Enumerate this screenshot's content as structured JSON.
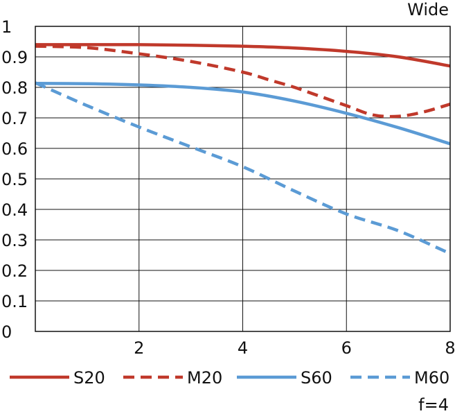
{
  "chart_data": {
    "type": "line",
    "title": "Wide",
    "footnote": "f=4",
    "xlim": [
      0,
      8
    ],
    "ylim": [
      0,
      1
    ],
    "x_ticks": [
      2,
      4,
      6,
      8
    ],
    "y_ticks": [
      0,
      0.1,
      0.2,
      0.3,
      0.4,
      0.5,
      0.6,
      0.7,
      0.8,
      0.9,
      1
    ],
    "y_tick_labels": [
      "0",
      "0.1",
      "0.2",
      "0.3",
      "0.4",
      "0.5",
      "0.6",
      "0.7",
      "0.8",
      "0.9",
      "1"
    ],
    "grid": true,
    "legend_position": "bottom",
    "series": [
      {
        "name": "S20",
        "color": "#c0392b",
        "dash": false,
        "x": [
          0,
          1,
          2,
          3,
          4,
          5,
          6,
          7,
          8
        ],
        "y": [
          0.94,
          0.94,
          0.94,
          0.938,
          0.935,
          0.929,
          0.918,
          0.9,
          0.87
        ]
      },
      {
        "name": "M20",
        "color": "#c0392b",
        "dash": true,
        "x": [
          0,
          1,
          2,
          3,
          4,
          4.5,
          5,
          5.5,
          6,
          6.5,
          7,
          7.5,
          8
        ],
        "y": [
          0.935,
          0.93,
          0.91,
          0.885,
          0.85,
          0.825,
          0.8,
          0.77,
          0.74,
          0.71,
          0.705,
          0.72,
          0.745
        ]
      },
      {
        "name": "S60",
        "color": "#5b9bd5",
        "dash": false,
        "x": [
          0,
          1,
          2,
          3,
          4,
          5,
          6,
          7,
          8
        ],
        "y": [
          0.813,
          0.812,
          0.808,
          0.8,
          0.785,
          0.755,
          0.715,
          0.668,
          0.615
        ]
      },
      {
        "name": "M60",
        "color": "#5b9bd5",
        "dash": true,
        "x": [
          0,
          1,
          2,
          3,
          4,
          5,
          6,
          7,
          8
        ],
        "y": [
          0.815,
          0.74,
          0.67,
          0.605,
          0.54,
          0.46,
          0.385,
          0.33,
          0.255
        ]
      }
    ]
  }
}
